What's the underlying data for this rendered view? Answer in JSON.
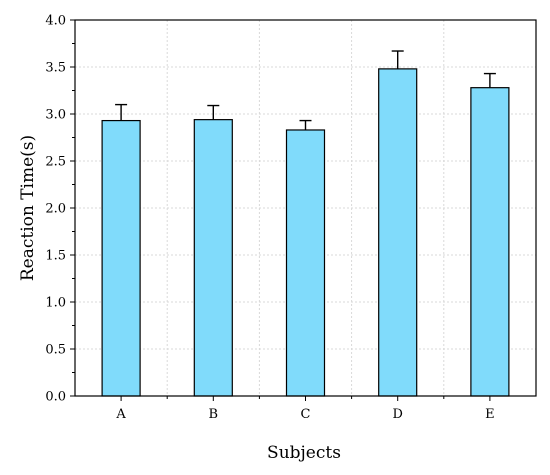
{
  "chart_data": {
    "type": "bar",
    "title": "",
    "xlabel": "Subjects",
    "ylabel": "Reaction Time(s)",
    "categories": [
      "A",
      "B",
      "C",
      "D",
      "E"
    ],
    "values": [
      2.93,
      2.94,
      2.83,
      3.48,
      3.28
    ],
    "error": [
      0.17,
      0.15,
      0.1,
      0.19,
      0.15
    ],
    "ylim": [
      0,
      4.0
    ],
    "yticks": [
      0.0,
      0.5,
      1.0,
      1.5,
      2.0,
      2.5,
      3.0,
      3.5,
      4.0
    ],
    "ytick_labels": [
      "0.0",
      "0.5",
      "1.0",
      "1.5",
      "2.0",
      "2.5",
      "3.0",
      "3.5",
      "4.0"
    ],
    "grid": true,
    "colors": {
      "bar_fill": "#80DBFB",
      "bar_stroke": "#000000",
      "grid": "#D9D9D9",
      "axis": "#000000"
    }
  }
}
